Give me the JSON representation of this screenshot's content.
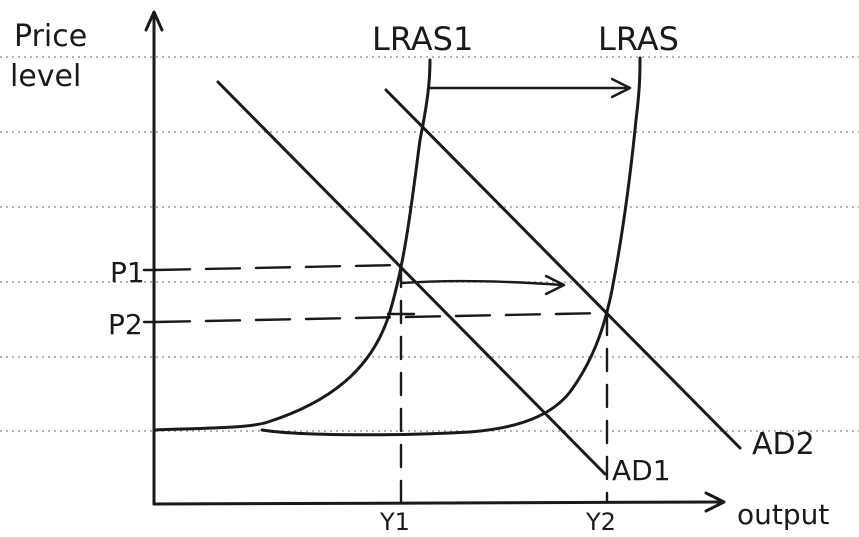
{
  "axes": {
    "y_label_line1": "Price",
    "y_label_line2": "level",
    "x_label": "output"
  },
  "curves": {
    "lras1": "LRAS1",
    "lras2": "LRAS",
    "ad1": "AD1",
    "ad2": "AD2"
  },
  "ticks": {
    "p1": "P1",
    "p2": "P2",
    "y1": "Y1",
    "y2": "Y2"
  }
}
